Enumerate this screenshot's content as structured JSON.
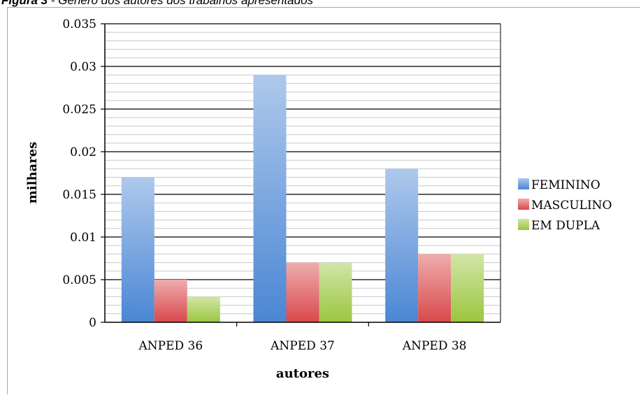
{
  "caption": {
    "prefix": "Figura 3",
    "text": " - Gênero dos autores dos trabalhos apresentados"
  },
  "chart_data": {
    "type": "bar",
    "categories": [
      "ANPED 36",
      "ANPED 37",
      "ANPED 38"
    ],
    "series": [
      {
        "name": "FEMININO",
        "values": [
          0.017,
          0.029,
          0.018
        ],
        "color": "#4a86d4"
      },
      {
        "name": "MASCULINO",
        "values": [
          0.005,
          0.007,
          0.008
        ],
        "color": "#d9484a"
      },
      {
        "name": "EM DUPLA",
        "values": [
          0.003,
          0.007,
          0.008
        ],
        "color": "#9bc63e"
      }
    ],
    "title": "",
    "xlabel": "autores",
    "ylabel": "milhares",
    "ylim": [
      0,
      0.035
    ],
    "yticks": [
      "0",
      "0.005",
      "0.01",
      "0.015",
      "0.02",
      "0.025",
      "0.03",
      "0.035"
    ],
    "grid": true,
    "legend": "right"
  }
}
